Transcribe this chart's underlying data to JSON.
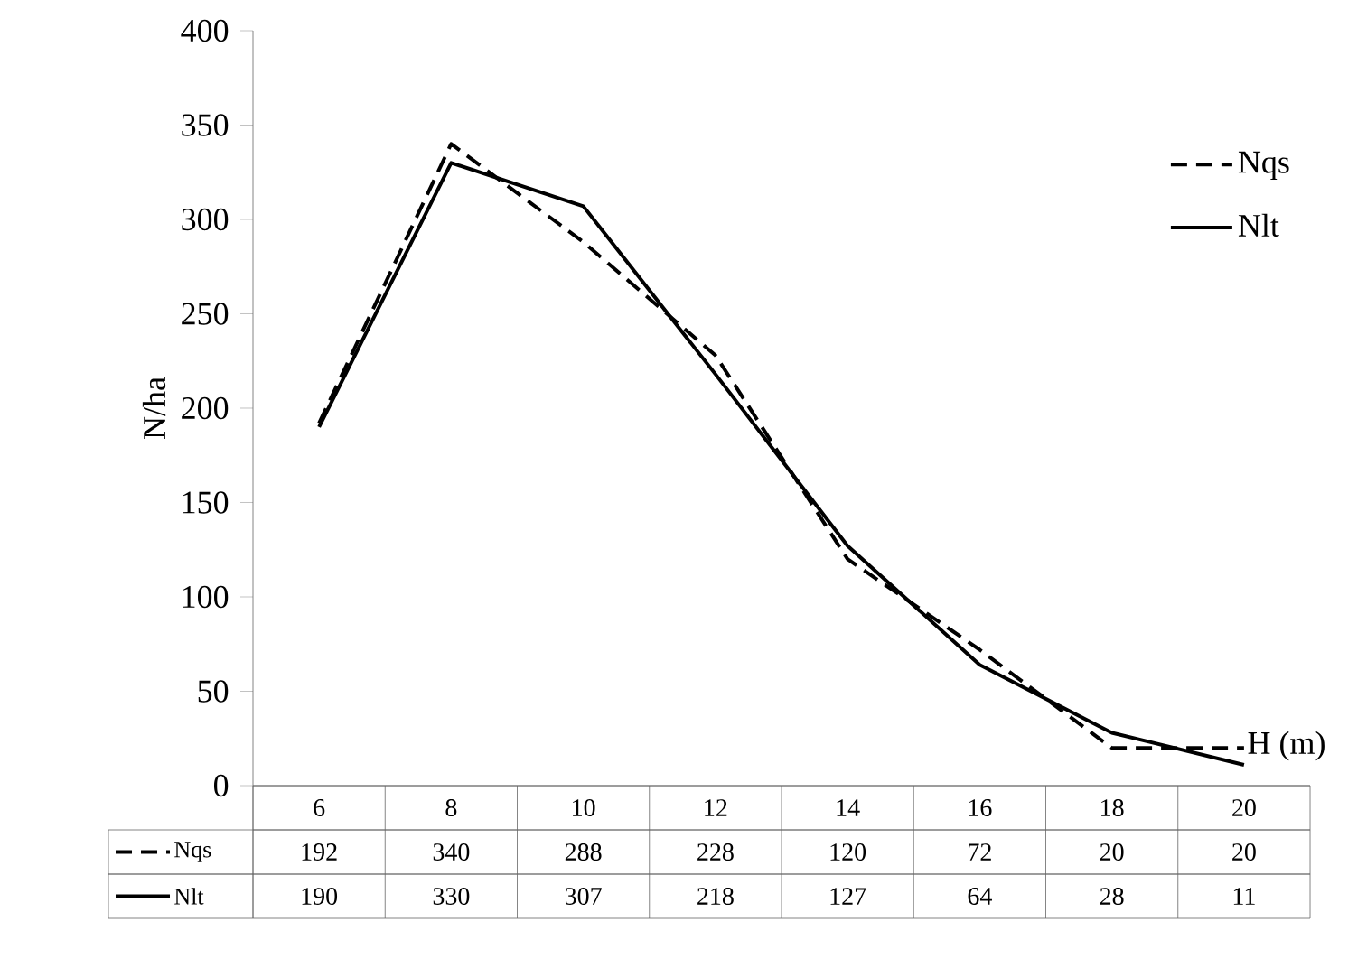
{
  "chart_data": {
    "type": "line",
    "ylabel": "N/ha",
    "xlabel": "H (m)",
    "categories": [
      "6",
      "8",
      "10",
      "12",
      "14",
      "16",
      "18",
      "20"
    ],
    "series": [
      {
        "name": "Nqs",
        "color": "#000000",
        "line_style": "dashed",
        "values": [
          192,
          340,
          288,
          228,
          120,
          72,
          20,
          20
        ]
      },
      {
        "name": "Nlt",
        "color": "#000000",
        "line_style": "solid",
        "values": [
          190,
          330,
          307,
          218,
          127,
          64,
          28,
          11
        ]
      }
    ],
    "ylim": [
      0,
      400
    ],
    "yticks": [
      0,
      50,
      100,
      150,
      200,
      250,
      300,
      350,
      400
    ],
    "data_labels": true,
    "legend": "top right"
  }
}
